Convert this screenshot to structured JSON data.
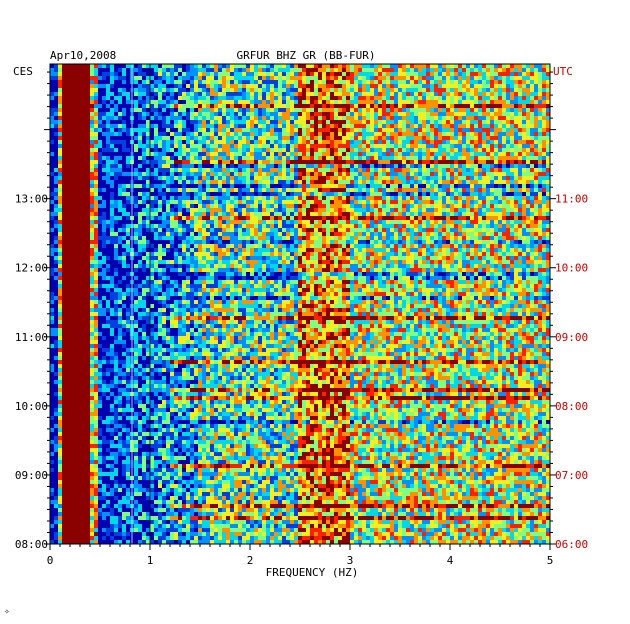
{
  "chart_data": {
    "type": "heatmap",
    "date_label": "Apr10,2008",
    "title": "GRFUR BHZ GR (BB-FUR)",
    "left_axis_label": "CES",
    "right_axis_label": "UTC",
    "xlabel": "FREQUENCY (HZ)",
    "xlim": [
      0,
      5
    ],
    "x_ticks": [
      "0",
      "1",
      "2",
      "3",
      "4",
      "5"
    ],
    "left_ticks": [
      "13:00",
      "12:00",
      "11:00",
      "10:00",
      "09:00",
      "08:00"
    ],
    "right_ticks": [
      "11:00",
      "10:00",
      "09:00",
      "08:00",
      "07:00",
      "06:00"
    ],
    "ylim_utc_hours": [
      6.0,
      12.95
    ],
    "grid": false,
    "colors": {
      "axis": "#000000",
      "utc_text": "#cc0000",
      "low": "#0000b0",
      "high": "#8b0000",
      "colormap": [
        "#0000b0",
        "#0040e0",
        "#0090ff",
        "#00d8e8",
        "#80ff80",
        "#f0f020",
        "#ff9000",
        "#ff2000",
        "#8b0000"
      ]
    },
    "bands_hz": [
      {
        "from": 0.0,
        "to": 0.08,
        "level": "low"
      },
      {
        "from": 0.12,
        "to": 0.42,
        "level": "high"
      },
      {
        "from": 0.5,
        "to": 1.5,
        "level": "low"
      },
      {
        "from": 2.5,
        "to": 3.0,
        "level": "high"
      }
    ]
  },
  "footer_mark": "✧"
}
